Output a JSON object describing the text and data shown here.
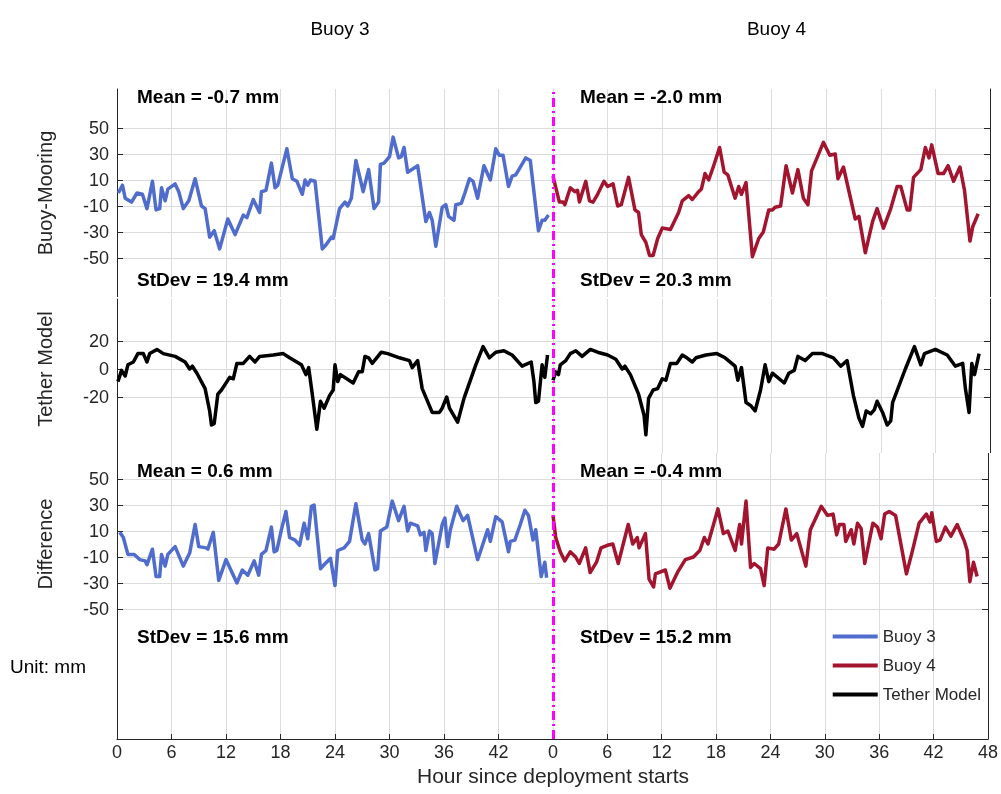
{
  "chart_data": [
    {
      "type": "line",
      "title": "Buoy 3",
      "ylabel": "Buoy-Mooring",
      "legend": "bottom right",
      "xlim": [
        0,
        48
      ],
      "xticks": [
        0,
        6,
        12,
        18,
        24,
        30,
        36,
        42
      ],
      "ylim": [
        -80,
        80
      ],
      "yticks": [
        -50,
        -30,
        -10,
        10,
        30,
        50
      ],
      "grid": true,
      "tick_labels": "y",
      "annotations": [
        "Mean = -0.7 mm",
        "StDev = 19.4 mm"
      ],
      "series": [
        {
          "name": "Buoy 3",
          "color": "#506ccc",
          "x": [
            0.15,
            0.6,
            0.9,
            1.6,
            2.2,
            2.8,
            3.3,
            3.9,
            4.3,
            4.7,
            4.9,
            5.3,
            5.6,
            6.4,
            6.8,
            7.3,
            7.9,
            8.6,
            9.3,
            9.7,
            10.2,
            10.7,
            11.3,
            12.2,
            13.0,
            13.9,
            14.3,
            15.0,
            15.7,
            15.9,
            16.4,
            17.0,
            17.4,
            17.7,
            18.7,
            19.3,
            19.8,
            20.4,
            20.7,
            21.0,
            21.3,
            21.8,
            22.6,
            23.0,
            23.6,
            23.8,
            24.5,
            25.1,
            25.4,
            25.8,
            26.3,
            27.1,
            27.7,
            28.3,
            28.8,
            29.0,
            29.4,
            30.0,
            30.4,
            31.0,
            31.3,
            31.6,
            32.0,
            33.1,
            34.0,
            34.4,
            34.7,
            35.1,
            35.8,
            36.2,
            36.5,
            37.1,
            37.3,
            37.9,
            38.3,
            38.8,
            39.2,
            39.7,
            40.4,
            41.1,
            41.7,
            42.1,
            42.5,
            43.1,
            43.5,
            43.9,
            45.0,
            45.5,
            46.4,
            46.8,
            47.1,
            47.5
          ],
          "values": [
            0,
            6,
            -4,
            -7,
            0,
            -1,
            -12,
            9,
            -13,
            -12,
            4,
            -6,
            3,
            7,
            1,
            -12,
            -6,
            11,
            -10,
            -12,
            -34,
            -29,
            -43,
            -20,
            -32,
            -17,
            -19,
            -5,
            -15,
            1,
            2,
            23,
            4,
            6,
            34,
            11,
            9,
            -1,
            10,
            6,
            10,
            9,
            -43,
            -40,
            -34,
            -35,
            -12,
            -7,
            -10,
            -4,
            25,
            1,
            18,
            -12,
            -7,
            22,
            23,
            28,
            43,
            27,
            28,
            35,
            16,
            21,
            -22,
            -15,
            -21,
            -41,
            -11,
            -9,
            -18,
            -21,
            -9,
            -8,
            0,
            11,
            9,
            -4,
            21,
            10,
            34,
            29,
            29,
            5,
            13,
            14,
            27,
            25,
            -29,
            -21,
            -21,
            -17
          ]
        }
      ]
    },
    {
      "type": "line",
      "title": "Buoy 4",
      "legend": "bottom right",
      "xlim": [
        0,
        48
      ],
      "xticks": [
        0,
        6,
        12,
        18,
        24,
        30,
        36,
        42,
        48
      ],
      "ylim": [
        -80,
        80
      ],
      "yticks": [
        -50,
        -30,
        -10,
        10,
        30,
        50
      ],
      "grid": true,
      "tick_labels": false,
      "annotations": [
        "Mean = -2.0 mm",
        "StDev = 20.3 mm"
      ],
      "ref_lines": [
        {
          "axis": "x",
          "value": 0,
          "color": "#ff00ff",
          "line_style": "dashed"
        }
      ],
      "series": [
        {
          "name": "Buoy 4",
          "color": "#a3142f",
          "x": [
            0,
            0.7,
            1.1,
            1.3,
            1.9,
            2.4,
            2.7,
            2.9,
            3.6,
            4.0,
            4.4,
            4.9,
            5.6,
            6.0,
            6.6,
            7.1,
            7.5,
            8.3,
            9.0,
            9.4,
            9.7,
            10.2,
            10.6,
            11.0,
            11.5,
            12.0,
            12.9,
            13.8,
            14.2,
            14.9,
            15.3,
            16.0,
            16.3,
            16.7,
            17.1,
            17.6,
            18.3,
            18.8,
            19.2,
            20.0,
            20.4,
            20.7,
            21.2,
            21.9,
            22.6,
            23.1,
            23.7,
            24.1,
            24.4,
            25.0,
            25.6,
            26.3,
            26.9,
            27.5,
            28.0,
            28.4,
            29.0,
            29.7,
            30.4,
            31.0,
            31.3,
            31.9,
            33.2,
            33.6,
            34.3,
            35.1,
            35.6,
            36.3,
            37.1,
            37.8,
            38.2,
            38.9,
            39.2,
            39.6,
            40.4,
            40.9,
            41.3,
            41.6,
            42.3,
            42.9,
            43.4,
            44.0,
            44.7,
            45.2,
            45.8,
            46.1,
            46.7
          ],
          "values": [
            13,
            -7,
            -7,
            -9,
            4,
            1,
            2,
            -7,
            9,
            -6,
            -7,
            -1,
            9,
            5,
            7,
            -10,
            -9,
            12,
            -13,
            -15,
            -32,
            -38,
            -48,
            -48,
            -35,
            -27,
            -28,
            -15,
            -6,
            -2,
            -5,
            1,
            3,
            15,
            10,
            20,
            35,
            16,
            14,
            -4,
            5,
            -1,
            8,
            -49,
            -35,
            -30,
            -13,
            -13,
            -11,
            -10,
            21,
            0,
            18,
            -4,
            -9,
            17,
            27,
            39,
            29,
            30,
            11,
            20,
            -20,
            -18,
            -46,
            -22,
            -12,
            -27,
            -12,
            5,
            5,
            -13,
            -13,
            12,
            18,
            35,
            27,
            37,
            15,
            15,
            21,
            9,
            20,
            2,
            -37,
            -26,
            -16
          ]
        }
      ]
    },
    {
      "type": "line",
      "ylabel": "Tether Model",
      "legend": "bottom right",
      "xlim": [
        0,
        48
      ],
      "xticks": [
        0,
        6,
        12,
        18,
        24,
        30,
        36,
        42
      ],
      "ylim": [
        -60,
        50
      ],
      "yticks": [
        -20,
        0,
        20
      ],
      "grid": true,
      "tick_labels": "y",
      "series": [
        {
          "name": "Tether Model",
          "color": "#000000",
          "x": [
            0.1,
            0.5,
            0.9,
            1.2,
            1.8,
            2.3,
            2.9,
            3.3,
            3.6,
            4.4,
            5.1,
            6.4,
            7.5,
            8.0,
            8.3,
            8.8,
            9.7,
            10.2,
            10.4,
            10.7,
            11.1,
            11.5,
            12.1,
            12.4,
            12.8,
            13.2,
            13.9,
            14.6,
            15.2,
            15.7,
            17.2,
            18.3,
            19.0,
            20.3,
            20.8,
            21.1,
            21.5,
            22.0,
            22.4,
            22.8,
            23.4,
            23.8,
            24.0,
            24.3,
            24.6,
            26.0,
            26.6,
            27.0,
            27.3,
            27.7,
            28.1,
            29.1,
            29.8,
            31.1,
            32.2,
            32.5,
            33.1,
            33.6,
            34.7,
            35.5,
            35.8,
            36.3,
            36.6,
            37.5,
            38.2,
            39.5,
            40.3,
            41.0,
            41.7,
            42.6,
            43.5,
            44.6,
            45.6,
            45.9,
            46.1,
            46.4,
            46.8,
            47.1,
            47.4
          ],
          "values": [
            -9,
            -1,
            -5,
            3,
            5,
            11,
            11,
            5,
            11,
            14,
            11,
            9,
            5,
            0,
            2,
            -3,
            -14,
            -30,
            -40,
            -39,
            -18,
            -15,
            -9,
            -6,
            -7,
            4,
            4,
            9,
            5,
            9,
            10,
            11,
            8,
            3,
            -4,
            1,
            -18,
            -43,
            -23,
            -28,
            -19,
            -15,
            3,
            -9,
            -4,
            -10,
            -2,
            -2,
            9,
            8,
            4,
            12,
            11,
            8,
            6,
            1,
            6,
            -14,
            -31,
            -31,
            -28,
            -20,
            -28,
            -38,
            -21,
            3,
            16,
            8,
            12,
            13,
            10,
            2,
            5,
            -9,
            -24,
            -23,
            3,
            -6,
            10
          ]
        }
      ]
    },
    {
      "type": "line",
      "xlim": [
        0,
        48
      ],
      "xticks": [
        0,
        6,
        12,
        18,
        24,
        30,
        36,
        42,
        48
      ],
      "ylim": [
        -60,
        50
      ],
      "yticks": [
        -20,
        0,
        20
      ],
      "grid": true,
      "tick_labels": false,
      "ref_lines": [
        {
          "axis": "x",
          "value": 0,
          "color": "#ff00ff",
          "line_style": "dashed"
        }
      ],
      "series": [
        {
          "color": "#000000",
          "x": [
            0,
            0.3,
            0.6,
            0.8,
            1.4,
            1.9,
            2.5,
            3.2,
            4.1,
            4.9,
            6.0,
            6.9,
            7.6,
            7.9,
            8.5,
            9.4,
            10.0,
            10.2,
            10.5,
            11.0,
            11.5,
            12.0,
            12.4,
            12.9,
            13.6,
            14.2,
            14.7,
            15.3,
            15.7,
            16.8,
            18.0,
            18.9,
            20.0,
            20.3,
            20.7,
            21.2,
            21.7,
            22.2,
            22.8,
            23.3,
            23.7,
            24.1,
            25.4,
            25.9,
            26.5,
            26.9,
            27.7,
            28.5,
            29.6,
            30.8,
            31.6,
            32.3,
            33.0,
            33.6,
            34.0,
            34.4,
            34.9,
            35.3,
            35.6,
            36.2,
            36.7,
            37.1,
            37.3,
            38.7,
            39.7,
            40.4,
            40.8,
            42.0,
            43.3,
            44.2,
            45.0,
            45.3,
            45.7,
            46.0,
            46.3,
            46.8
          ],
          "values": [
            -8,
            -2,
            -4,
            3,
            6,
            11,
            13,
            9,
            14,
            12,
            10,
            7,
            0,
            2,
            -4,
            -18,
            -33,
            -47,
            -21,
            -15,
            -14,
            -7,
            -8,
            4,
            4,
            10,
            8,
            5,
            8,
            10,
            11,
            8,
            2,
            -8,
            1,
            -24,
            -26,
            -30,
            -15,
            3,
            -9,
            -3,
            -10,
            -3,
            -1,
            9,
            6,
            11,
            11,
            8,
            2,
            6,
            -19,
            -35,
            -41,
            -30,
            -32,
            -29,
            -23,
            -31,
            -40,
            -37,
            -24,
            0,
            16,
            3,
            11,
            14,
            10,
            2,
            4,
            -14,
            -31,
            4,
            -4,
            11
          ]
        }
      ]
    },
    {
      "type": "line",
      "ylabel": "Difference",
      "xlabel": "Hour since deployment starts",
      "xlim": [
        0,
        48
      ],
      "xticks": [
        0,
        6,
        12,
        18,
        24,
        30,
        36,
        42
      ],
      "ylim": [
        -150,
        70
      ],
      "yticks": [
        -50,
        -30,
        -10,
        10,
        30,
        50
      ],
      "grid": true,
      "annotations": [
        "Mean = 0.6 mm",
        "StDev = 15.6 mm",
        "Unit: mm"
      ],
      "series": [
        {
          "color": "#506ccc",
          "x": [
            0.3,
            0.7,
            1.2,
            1.9,
            2.5,
            3.1,
            3.3,
            3.9,
            4.3,
            4.7,
            4.9,
            5.3,
            5.6,
            6.4,
            7.3,
            8.0,
            8.6,
            9.0,
            9.8,
            10.0,
            10.6,
            11.2,
            12.0,
            13.2,
            13.8,
            14.4,
            15.1,
            15.6,
            15.9,
            16.4,
            17.0,
            17.3,
            17.6,
            18.1,
            18.6,
            19.0,
            19.6,
            20.1,
            20.6,
            21.0,
            21.4,
            21.7,
            22.4,
            22.8,
            23.5,
            24.0,
            24.3,
            25.0,
            25.6,
            26.3,
            27.0,
            27.3,
            27.7,
            28.4,
            28.7,
            29.0,
            29.7,
            30.3,
            31.0,
            31.6,
            32.0,
            32.3,
            33.1,
            33.4,
            33.8,
            34.0,
            34.4,
            34.7,
            35.0,
            35.8,
            36.1,
            36.4,
            36.7,
            37.4,
            38.1,
            38.6,
            39.7,
            40.0,
            40.8,
            41.1,
            41.7,
            42.4,
            43.1,
            43.3,
            43.8,
            44.4,
            44.9,
            45.3,
            45.8,
            46.1,
            46.7,
            47.1,
            47.3
          ],
          "values": [
            9,
            5,
            -8,
            -8,
            -12,
            -13,
            -16,
            -4,
            -25,
            -25,
            -8,
            -17,
            -8,
            -2,
            -17,
            -7,
            15,
            -2,
            -3,
            -4,
            9,
            -28,
            -12,
            -30,
            -20,
            -24,
            -13,
            -24,
            -8,
            -5,
            13,
            -6,
            -5,
            11,
            25,
            5,
            3,
            -1,
            16,
            4,
            29,
            30,
            -19,
            -16,
            -11,
            -32,
            -5,
            -3,
            2,
            31,
            3,
            0,
            8,
            -20,
            -19,
            10,
            13,
            33,
            18,
            29,
            10,
            16,
            14,
            7,
            9,
            -5,
            10,
            8,
            -15,
            15,
            20,
            -2,
            11,
            29,
            18,
            22,
            -12,
            -6,
            11,
            2,
            21,
            17,
            -6,
            2,
            3,
            15,
            26,
            22,
            3,
            11,
            -25,
            -14,
            -26
          ]
        }
      ]
    },
    {
      "type": "line",
      "xlim": [
        0,
        48
      ],
      "xticks": [
        0,
        6,
        12,
        18,
        24,
        30,
        36,
        42,
        48
      ],
      "ylim": [
        -150,
        70
      ],
      "yticks": [
        -50,
        -30,
        -10,
        10,
        30,
        50
      ],
      "grid": true,
      "tick_labels": "x",
      "annotations": [
        "Mean = -0.4 mm",
        "StDev = 15.2 mm"
      ],
      "ref_lines": [
        {
          "axis": "x",
          "value": 0,
          "color": "#ff00ff",
          "line_style": "dashed"
        }
      ],
      "series": [
        {
          "color": "#a3142f",
          "x": [
            0,
            0.3,
            0.8,
            1.3,
            1.9,
            2.5,
            2.9,
            3.6,
            4.1,
            4.8,
            5.3,
            6.0,
            6.6,
            7.2,
            8.3,
            8.8,
            9.3,
            9.5,
            10.2,
            10.6,
            11.1,
            11.3,
            12.4,
            12.9,
            13.8,
            14.6,
            15.5,
            16.2,
            16.7,
            17.1,
            18.2,
            18.8,
            19.3,
            20.1,
            20.6,
            20.8,
            21.3,
            21.8,
            22.2,
            22.9,
            23.3,
            23.7,
            24.4,
            24.9,
            25.7,
            26.3,
            26.9,
            27.9,
            28.4,
            29.6,
            30.3,
            30.9,
            31.3,
            31.6,
            32.1,
            32.3,
            32.9,
            33.2,
            33.6,
            34.0,
            34.4,
            35.3,
            35.8,
            36.2,
            36.6,
            37.1,
            37.8,
            39.0,
            39.6,
            40.4,
            41.2,
            41.6,
            41.8,
            42.3,
            42.7,
            43.3,
            43.9,
            44.6,
            45.4,
            45.7,
            46.0,
            46.4,
            46.8
          ],
          "values": [
            22,
            5,
            -6,
            -13,
            -6,
            -10,
            -15,
            -3,
            -22,
            -14,
            -3,
            -1,
            0,
            -15,
            15,
            0,
            5,
            -3,
            8,
            -27,
            -33,
            -23,
            -20,
            -34,
            -21,
            -12,
            -10,
            -5,
            5,
            0,
            27,
            8,
            10,
            -5,
            15,
            0,
            33,
            -18,
            -15,
            -19,
            -32,
            -3,
            -4,
            0,
            27,
            3,
            8,
            -17,
            11,
            29,
            22,
            23,
            7,
            15,
            15,
            2,
            11,
            0,
            16,
            12,
            -15,
            16,
            13,
            4,
            23,
            25,
            22,
            -23,
            -7,
            16,
            23,
            17,
            24,
            2,
            3,
            13,
            6,
            15,
            2,
            -5,
            -29,
            -14,
            -25
          ]
        }
      ]
    }
  ]
}
